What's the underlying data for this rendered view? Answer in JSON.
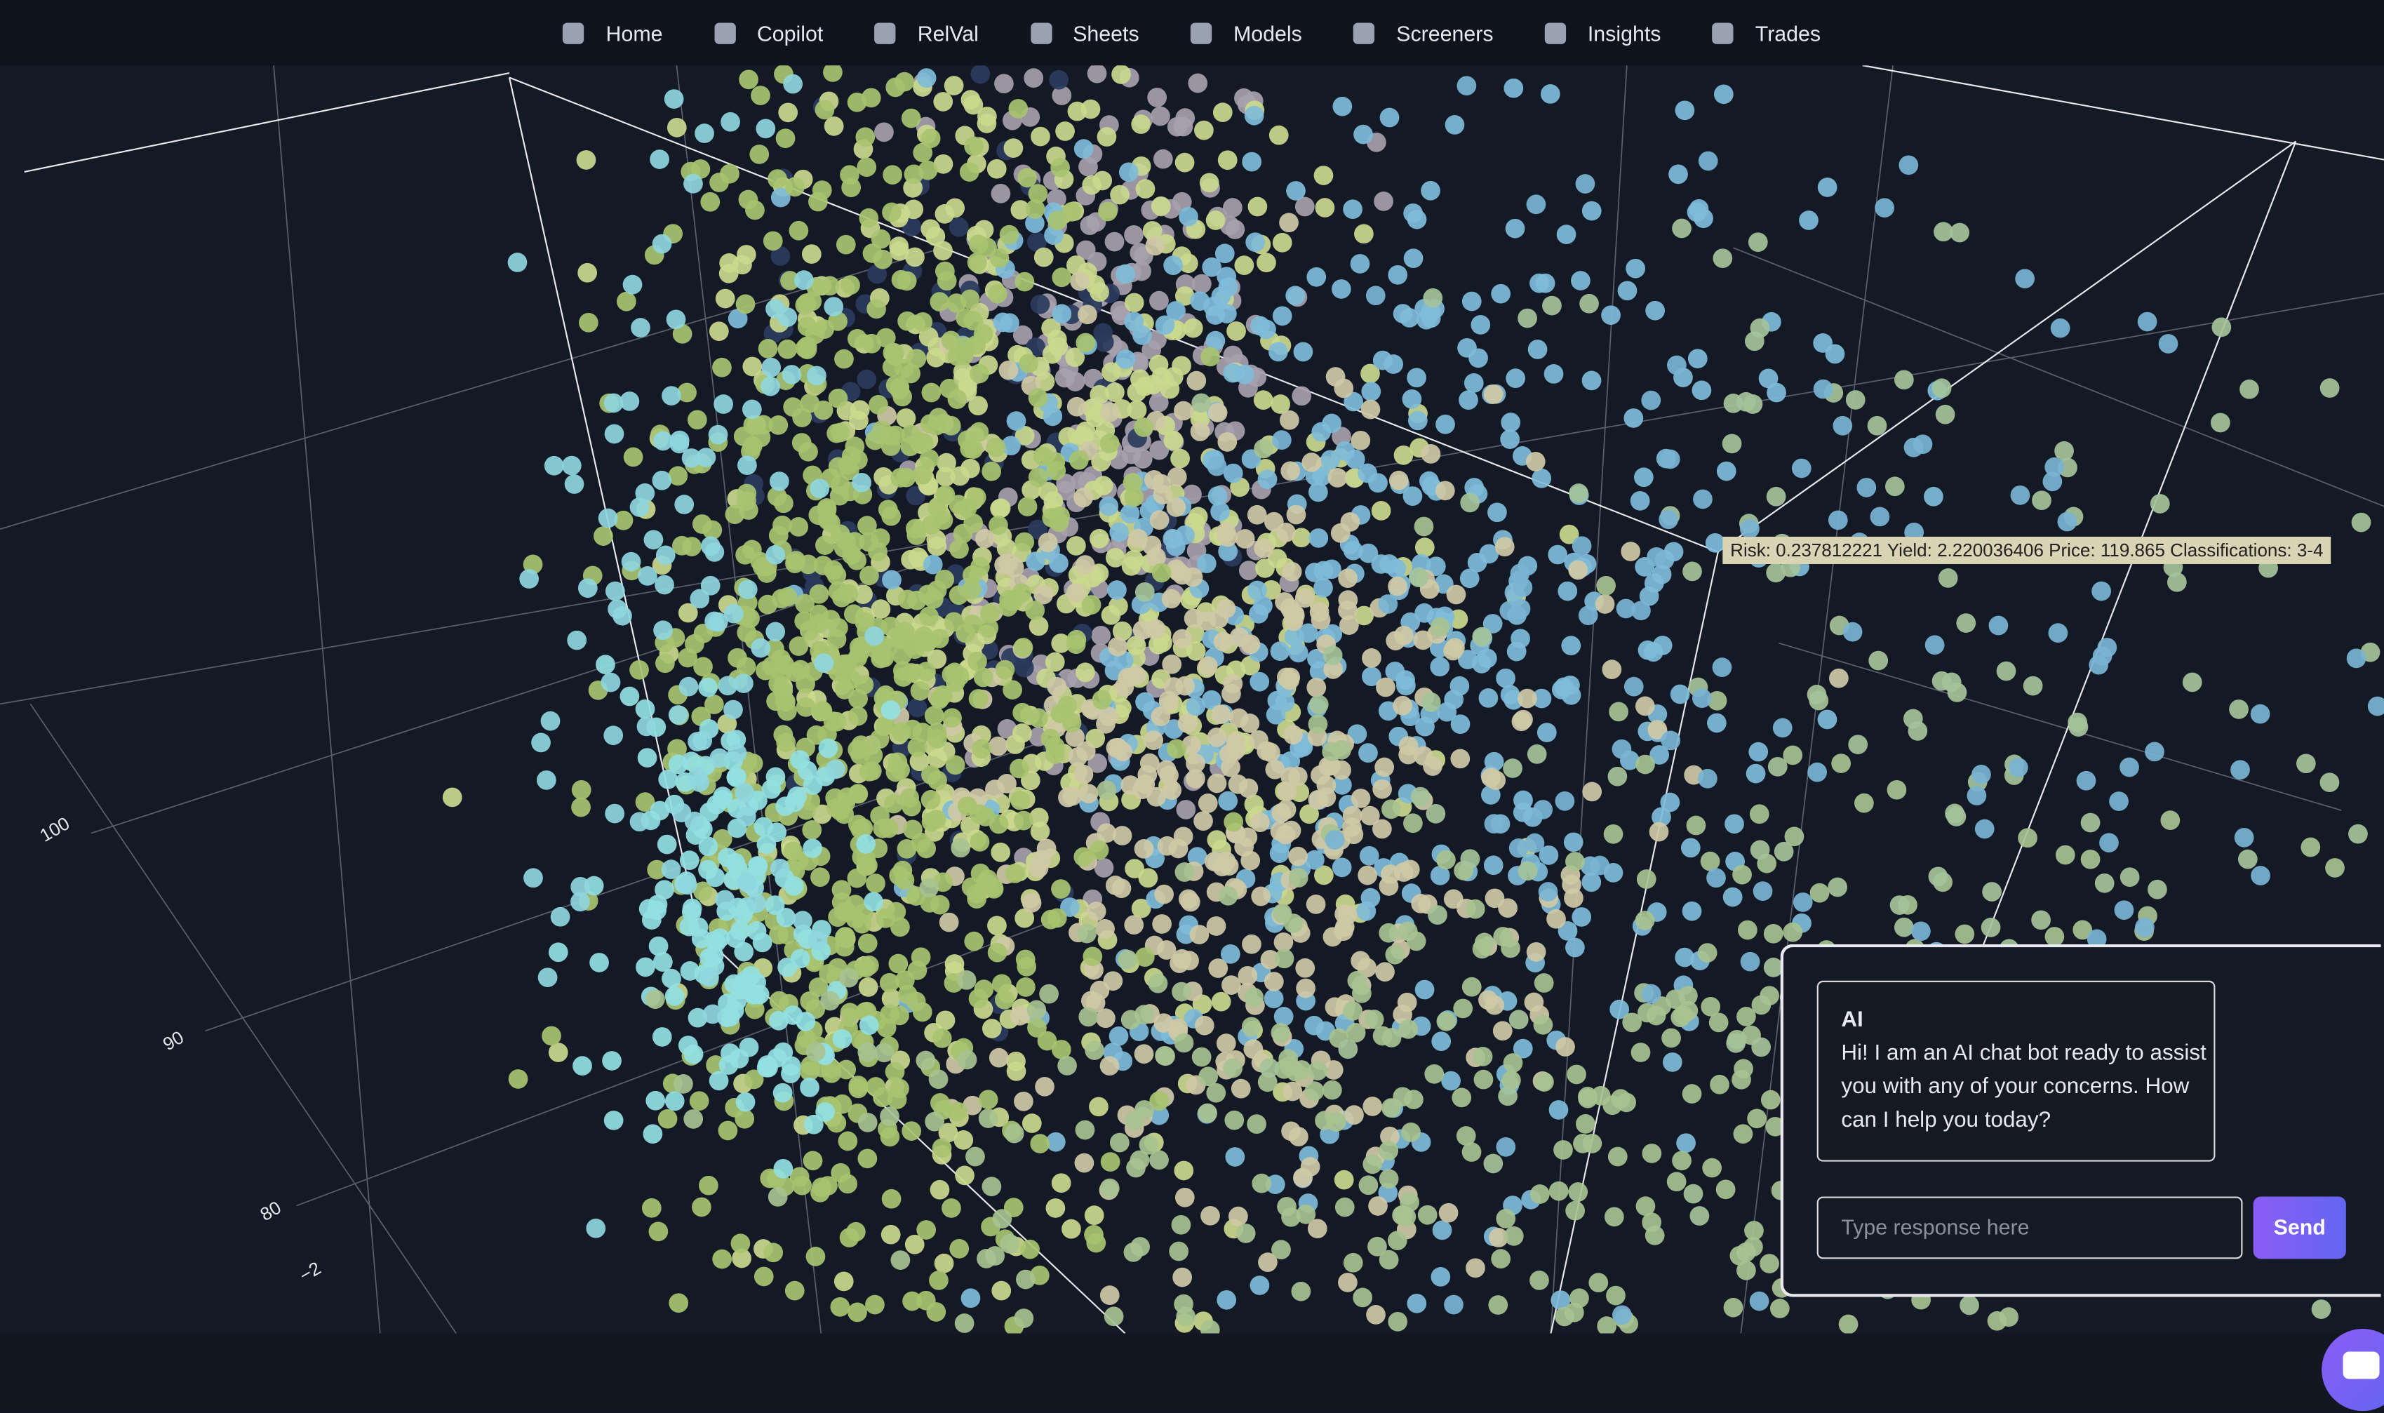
{
  "nav": {
    "items": [
      "Home",
      "Copilot",
      "RelVal",
      "Sheets",
      "Models",
      "Screeners",
      "Insights",
      "Trades"
    ]
  },
  "plot": {
    "axis_ticks": [
      "100",
      "90",
      "80",
      "−2"
    ],
    "tooltip": "Risk: 0.237812221 Yield: 2.220036406 Price: 119.865 Classifications: 3-4"
  },
  "chat": {
    "sender": "AI",
    "message": "Hi! I am an AI chat bot ready to assist you with any of your concerns. How can I help you today?",
    "placeholder": "Type response here",
    "send": "Send"
  }
}
